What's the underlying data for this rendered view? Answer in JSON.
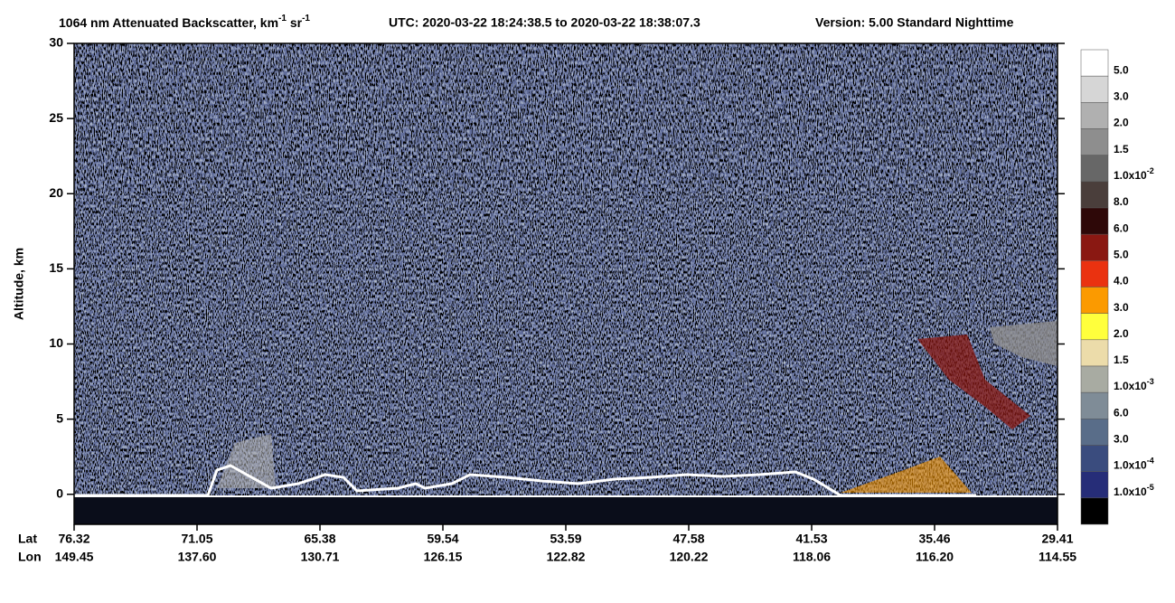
{
  "chart_data": {
    "type": "heatmap",
    "title": [
      "1064 nm Attenuated Backscatter, km",
      "-1",
      " sr",
      "-1"
    ],
    "utc": "UTC:  2020-03-22 18:24:38.5  to  2020-03-22 18:38:07.3",
    "version": "Version: 5.00  Standard  Nighttime",
    "ylabel": "Altitude, km",
    "ylim": [
      -2,
      30
    ],
    "yticks": [
      0,
      5,
      10,
      15,
      20,
      25,
      30
    ],
    "x_row_names": [
      "Lat",
      "Lon"
    ],
    "lat": [
      "76.32",
      "71.05",
      "65.38",
      "59.54",
      "53.59",
      "47.58",
      "41.53",
      "35.46",
      "29.41"
    ],
    "lon": [
      "149.45",
      "137.60",
      "130.71",
      "126.15",
      "122.82",
      "120.22",
      "118.06",
      "116.20",
      "114.55"
    ],
    "colorbar": {
      "colors": [
        "#ffffff",
        "#d6d6d6",
        "#b0b0b0",
        "#8e8e8e",
        "#676767",
        "#4a3e3b",
        "#2e0808",
        "#8a1812",
        "#ea3210",
        "#fb9a00",
        "#ffff3c",
        "#ecdcaa",
        "#a8aba2",
        "#7f8c97",
        "#596d89",
        "#3a4c7e",
        "#262d78",
        "#000000"
      ],
      "labels": [
        "5.0",
        "3.0",
        "2.0",
        "1.5",
        {
          "text": "1.0x10",
          "sup": "-2"
        },
        "8.0",
        "6.0",
        "5.0",
        "4.0",
        "3.0",
        "2.0",
        "1.5",
        {
          "text": "1.0x10",
          "sup": "-3"
        },
        "6.0",
        "3.0",
        {
          "text": "1.0x10",
          "sup": "-4"
        },
        {
          "text": "1.0x10",
          "sup": "-5"
        }
      ]
    }
  }
}
